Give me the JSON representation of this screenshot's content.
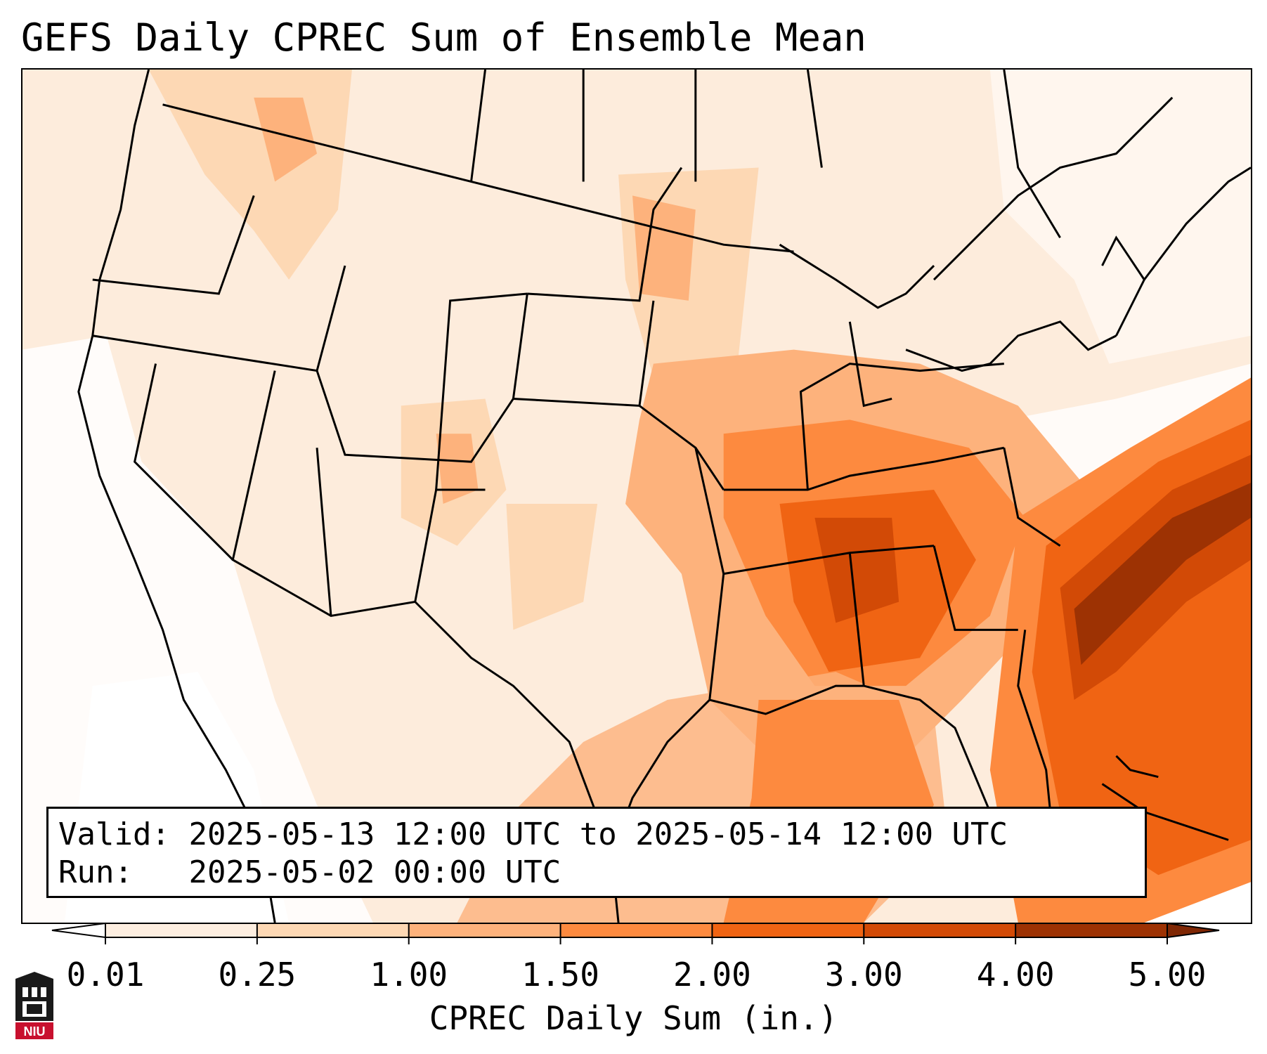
{
  "title": "GEFS Daily CPREC Sum of Ensemble Mean",
  "valid_label": "Valid:",
  "valid_value": "2025-05-13 12:00 UTC to 2025-05-14 12:00 UTC",
  "run_label": "Run:",
  "run_value": "2025-05-02 00:00 UTC",
  "colorbar": {
    "label": "CPREC Daily Sum (in.)",
    "ticks": [
      "0.01",
      "0.25",
      "1.00",
      "1.50",
      "2.00",
      "3.00",
      "4.00",
      "5.00"
    ],
    "colors": [
      "#fdeee0",
      "#fdd8b4",
      "#fdb27c",
      "#fd8a3f",
      "#f06413",
      "#d24a06",
      "#9d3203"
    ],
    "extend_min_color": "#ffffff",
    "extend_max_color": "#7f2704"
  },
  "logo_text": "NIU",
  "colors": {
    "background": "#fdecdc",
    "heavy": "#9d3203",
    "moderate": "#f06413",
    "border": "#000000"
  }
}
